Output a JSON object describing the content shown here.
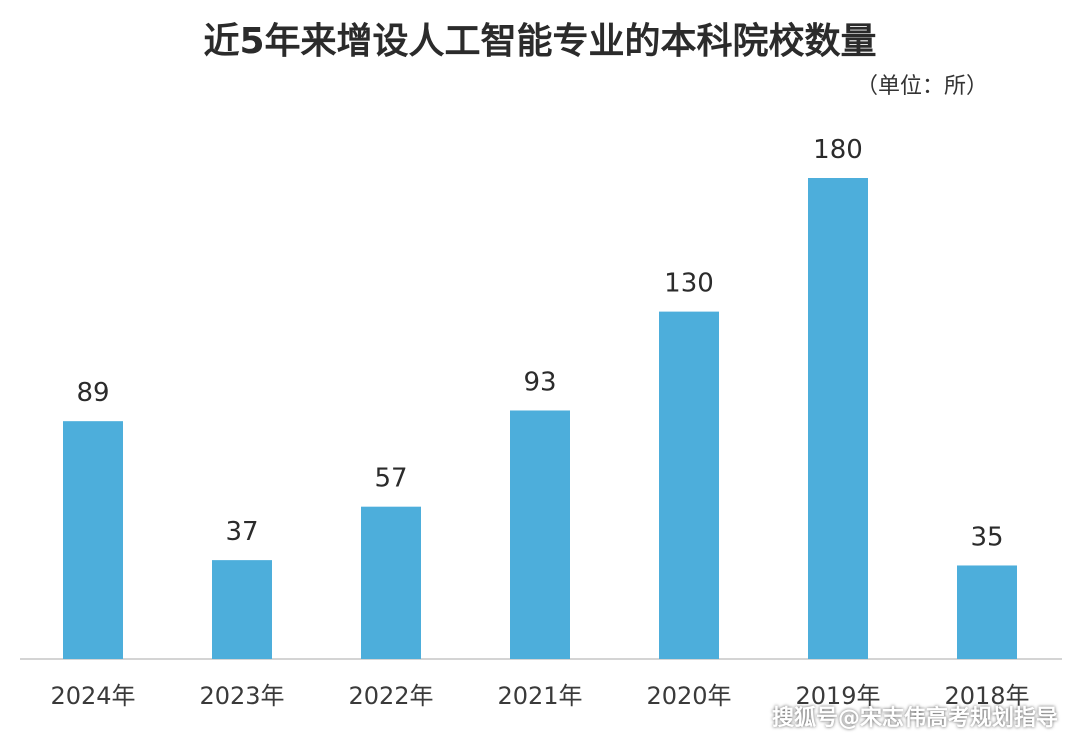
{
  "chart_data": {
    "type": "bar",
    "title": "近5年来增设人工智能专业的本科院校数量",
    "unit": "（单位：所）",
    "categories": [
      "2024年",
      "2023年",
      "2022年",
      "2021年",
      "2020年",
      "2019年",
      "2018年"
    ],
    "values": [
      89,
      37,
      57,
      93,
      130,
      180,
      35
    ],
    "data_labels": [
      "89",
      "37",
      "57",
      "93",
      "130",
      "180",
      "35"
    ],
    "bar_color": "#4daedb",
    "ylim": [
      0,
      180
    ],
    "grid": false,
    "legend": "none"
  },
  "watermark": "搜狐号@宋志伟高考规划指导"
}
